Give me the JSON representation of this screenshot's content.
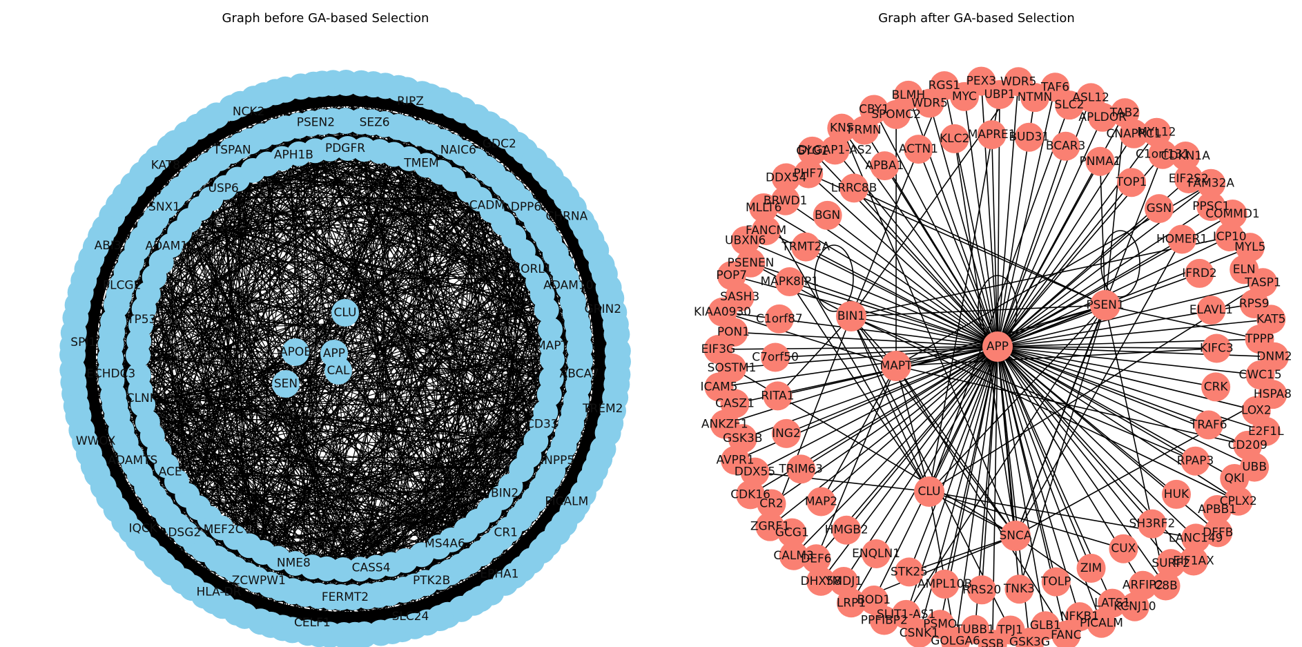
{
  "figure": {
    "before": {
      "title": "Graph before GA-based Selection",
      "node_color": "#87ceeb",
      "edge_color": "#000000",
      "center_labels": [
        "CLU",
        "APOE",
        "APP",
        "CAL",
        "SEN"
      ],
      "ring_labels": [
        "PDGFR",
        "SEZ6",
        "RIPZ",
        "TMEM",
        "NAIC6",
        "GDC2",
        "CADM",
        "DPP6",
        "CHRNA",
        "SORL1",
        "ADAM10",
        "GRIN2",
        "MAPT",
        "ABCA7",
        "TREM2",
        "CD33",
        "INPP5",
        "PICALM",
        "BIN2",
        "CR1",
        "EPHA1",
        "MS4A6",
        "PTK2B",
        "SLC24",
        "CASS4",
        "FERMT2",
        "CELF1",
        "NME8",
        "ZCWPW1",
        "HLA-DR",
        "MEF2C",
        "DSG2",
        "IQCK",
        "ACE",
        "ADAMTS",
        "WWOX",
        "CLNK",
        "ECHDC3",
        "SPI1",
        "TP53",
        "PLCG2",
        "ABI3",
        "ADAM17",
        "SNX1",
        "KAT8",
        "USP6",
        "TSPAN",
        "NCK2",
        "APH1B",
        "PSEN2"
      ]
    },
    "after": {
      "title": "Graph after GA-based Selection",
      "node_color": "#fa8072",
      "edge_color": "#000000",
      "hub_labels": [
        "APP",
        "BIN1",
        "PSEN1",
        "MAPT",
        "CLU",
        "SNCA"
      ],
      "ring_labels": [
        "WDR5",
        "NTMN",
        "TAF6",
        "SLC2",
        "ASL12",
        "APLDOR",
        "TAB2",
        "CNAPRC1",
        "MYL12",
        "C1orf131",
        "CDKN1A",
        "EIF2S2",
        "FAM32A",
        "PPSC1",
        "COMMD1",
        "ICP10",
        "MYL5",
        "ELN",
        "TASP1",
        "RPS9",
        "KAT5",
        "TPPP",
        "DNM2",
        "CWC15",
        "HSPA8",
        "LOX2",
        "E2F1L",
        "CD209",
        "UBB",
        "QKI",
        "CPLX2",
        "APBB1",
        "DFFB",
        "LANC149",
        "EIF1AX",
        "SURF2",
        "C8B",
        "ARFIP2",
        "KCNJ10",
        "LATS1",
        "PICALM",
        "NFKB1",
        "FANC",
        "GLB1",
        "GSK3G",
        "TPJ1",
        "SSB",
        "TUBB1",
        "GOLGA6",
        "PSMO",
        "CSNK1",
        "SLIT1-AS1",
        "PPFIBP2",
        "BOD1",
        "LRP1",
        "YMDJ1",
        "DHX58",
        "DEF6",
        "CALM3",
        "GCG1",
        "ZGRF1",
        "CR2",
        "CDK16",
        "DDX55",
        "AVPR1",
        "GSK3B",
        "ANKZF1",
        "CASZ1",
        "ICAM5",
        "SOSTM1",
        "EIF3G",
        "PON1",
        "KIAA0930",
        "SASH3",
        "POP7",
        "PSENEN",
        "UBXN6",
        "FANCM",
        "MLLT6",
        "BRWD1",
        "DDX54",
        "PHF7",
        "GYG1",
        "DLGAP1-AS2",
        "KNS",
        "FRMN",
        "CBY1",
        "SPOMC2",
        "BLMH",
        "WDR5",
        "RGS1",
        "MYC",
        "PEX3",
        "UBP1"
      ],
      "inner_labels": [
        "BUD31",
        "BCAR3",
        "PNMA1",
        "TOP1",
        "GSN",
        "HOMER1",
        "IFRD2",
        "ELAVL1",
        "KIFC3",
        "CRK",
        "TRAF6",
        "RPAP3",
        "HUK",
        "SH3RF2",
        "CUX",
        "ZIM",
        "TOLP",
        "TNK3",
        "RRS20",
        "AMPL10B",
        "STK25",
        "ENQLN1",
        "HMGB2",
        "MAP2",
        "TRIM63",
        "ING2",
        "RITA1",
        "C7orf50",
        "C1orf87",
        "MAPK8IP1",
        "TRMT2A",
        "BGN",
        "LRRC8B",
        "APBA1",
        "ACTN1",
        "KLC2",
        "MAPRE1"
      ]
    }
  }
}
